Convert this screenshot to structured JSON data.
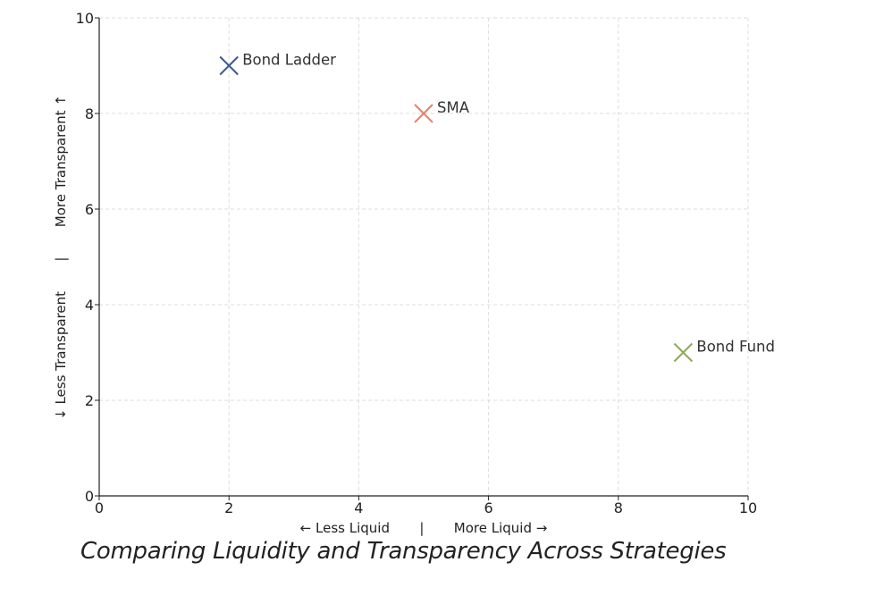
{
  "chart_data": {
    "type": "scatter",
    "title": "",
    "caption": "Comparing Liquidity and Transparency Across Strategies",
    "xlabel": "← Less Liquid       |       More Liquid →",
    "ylabel": "↓ Less Transparent       |       More Transparent ↑",
    "xlim": [
      0,
      10
    ],
    "ylim": [
      0,
      10
    ],
    "xticks": [
      "0",
      "2",
      "4",
      "6",
      "8",
      "10"
    ],
    "yticks": [
      "0",
      "2",
      "4",
      "6",
      "8",
      "10"
    ],
    "grid": true,
    "marker": "x",
    "points": [
      {
        "label": "Bond Ladder",
        "x": 2,
        "y": 9,
        "color": "#3b5a8c"
      },
      {
        "label": "SMA",
        "x": 5,
        "y": 8,
        "color": "#e8806c"
      },
      {
        "label": "Bond Fund",
        "x": 9,
        "y": 3,
        "color": "#8aab55"
      }
    ]
  }
}
